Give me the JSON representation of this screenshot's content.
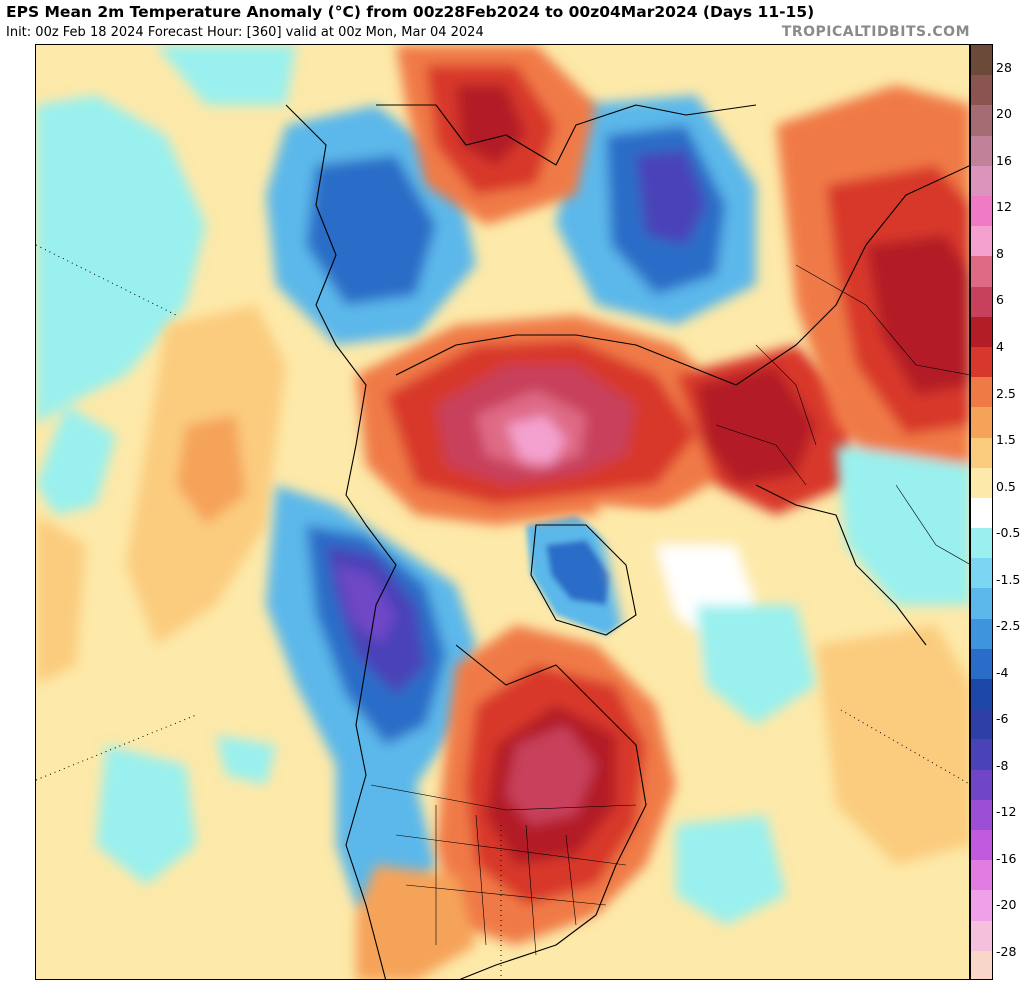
{
  "header": {
    "title": "EPS Mean 2m Temperature Anomaly (°C) from 00z28Feb2024 to 00z04Mar2024 (Days 11-15)",
    "subtitle": "Init: 00z Feb 18 2024   Forecast Hour: [360]   valid at 00z Mon, Mar 04 2024",
    "brand": "TROPICALTIDBITS.COM"
  },
  "colorbar": {
    "labels": [
      "28",
      "20",
      "16",
      "12",
      "8",
      "6",
      "4",
      "2.5",
      "1.5",
      "0.5",
      "-0.5",
      "-1.5",
      "-2.5",
      "-4",
      "-6",
      "-8",
      "-12",
      "-16",
      "-20",
      "-28"
    ],
    "colors": [
      "#6b4a3a",
      "#8a5550",
      "#a46d74",
      "#c18198",
      "#db94bb",
      "#f07bc4",
      "#f4a1cf",
      "#df6a86",
      "#c8415c",
      "#b31d25",
      "#d8372b",
      "#f07a46",
      "#f6a35a",
      "#fbcc7e",
      "#fde9a9",
      "#ffffff",
      "#9af0ee",
      "#7ad6f2",
      "#5cb8ea",
      "#3f95dd",
      "#2a6dc8",
      "#1c47a8",
      "#2f3fa8",
      "#4a43b8",
      "#7046c6",
      "#9a4fd6",
      "#c25ae0",
      "#e07ce2",
      "#efa0e6",
      "#f4c0dc",
      "#f8d6c8"
    ]
  }
}
